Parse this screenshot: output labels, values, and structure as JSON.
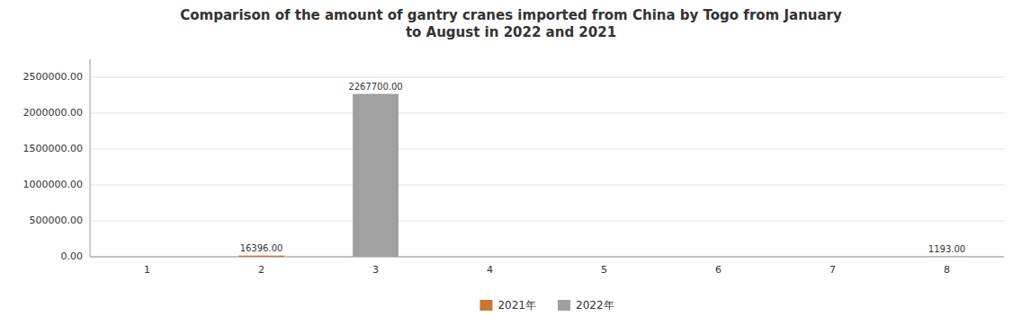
{
  "chart_data": {
    "type": "bar",
    "title": "Comparison of the amount of gantry cranes imported from China by Togo from January\nto August in 2022 and 2021",
    "categories": [
      "1",
      "2",
      "3",
      "4",
      "5",
      "6",
      "7",
      "8"
    ],
    "series": [
      {
        "name": "2021年",
        "color": "#C87832",
        "values": [
          0,
          16396,
          0,
          0,
          0,
          0,
          0,
          1193
        ],
        "value_labels": [
          null,
          "16396.00",
          null,
          null,
          null,
          null,
          null,
          "1193.00"
        ]
      },
      {
        "name": "2022年",
        "color": "#A0A0A0",
        "values": [
          0,
          0,
          2267700,
          0,
          0,
          0,
          0,
          0
        ],
        "value_labels": [
          null,
          null,
          "2267700.00",
          null,
          null,
          null,
          null,
          null
        ]
      }
    ],
    "ylim": [
      0,
      2750000
    ],
    "yticks": [
      {
        "value": 0,
        "label": "0.00"
      },
      {
        "value": 500000,
        "label": "500000.00"
      },
      {
        "value": 1000000,
        "label": "1000000.00"
      },
      {
        "value": 1500000,
        "label": "1500000.00"
      },
      {
        "value": 2000000,
        "label": "2000000.00"
      },
      {
        "value": 2500000,
        "label": "2500000.00"
      }
    ],
    "grid": true,
    "legend": "bottom",
    "data_labels": true
  }
}
